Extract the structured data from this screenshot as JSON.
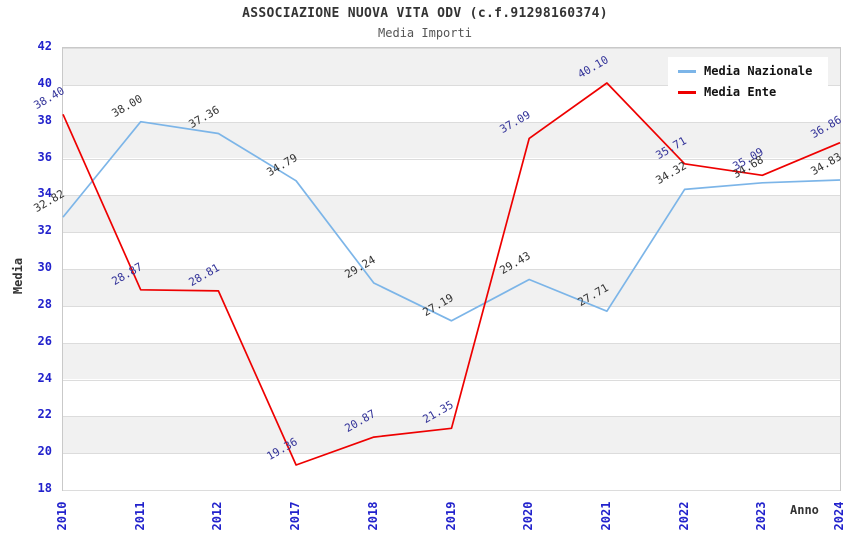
{
  "chart_data": {
    "type": "line",
    "title": "ASSOCIAZIONE NUOVA VITA ODV (c.f.91298160374)",
    "subtitle": "Media Importi",
    "xlabel": "Anno",
    "ylabel": "Media",
    "ylim": [
      18,
      42
    ],
    "ytick_step": 2,
    "grid": "horizontal gridlines every 2 units with alternating light-gray bands",
    "legend_position": "top-right",
    "categories": [
      "2010",
      "2011",
      "2012",
      "2017",
      "2018",
      "2019",
      "2020",
      "2021",
      "2022",
      "2023",
      "2024"
    ],
    "series": [
      {
        "name": "Media Nazionale",
        "color": "#7cb5e8",
        "label_color": "#333333",
        "values": [
          32.82,
          38.0,
          37.36,
          34.79,
          29.24,
          27.19,
          29.43,
          27.71,
          34.32,
          34.68,
          34.83
        ],
        "labels": [
          "32.82",
          "38.00",
          "37.36",
          "34.79",
          "29.24",
          "27.19",
          "29.43",
          "27.71",
          "34.32",
          "34.68",
          "34.83"
        ]
      },
      {
        "name": "Media Ente",
        "color": "#ee0000",
        "label_color": "#333399",
        "values": [
          38.4,
          28.87,
          28.81,
          19.36,
          20.87,
          21.35,
          37.09,
          40.1,
          35.71,
          35.09,
          36.86
        ],
        "labels": [
          "38.40",
          "28.87",
          "28.81",
          "19.36",
          "20.87",
          "21.35",
          "37.09",
          "40.10",
          "35.71",
          "35.09",
          "36.86"
        ]
      }
    ]
  },
  "colors": {
    "axis_tick": "#2222cc",
    "band": "#f1f1f1",
    "band_alt": "#ffffff",
    "gridline": "#dcdcdc",
    "plot_border": "#c9c9c9",
    "title": "#333333",
    "subtitle": "#555555",
    "axis_title": "#333333"
  }
}
